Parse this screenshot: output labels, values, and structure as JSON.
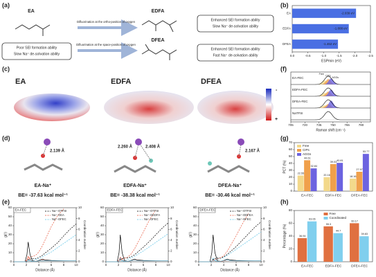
{
  "panel_labels": [
    "(a)",
    "(b)",
    "(c)",
    "(d)",
    "(e)",
    "(f)",
    "(g)",
    "(h)"
  ],
  "a": {
    "molecules": [
      "EA",
      "EDFA",
      "DFEA"
    ],
    "arrows": [
      "Difluorination at the ortho-position of oxygen",
      "Difluorination at the space-position of oxygen"
    ],
    "boxes": [
      [
        "Poor SEI formation ability",
        "Slow Na⁺ de-solvation ability"
      ],
      [
        "Enhanced SEI formation ability",
        "Slow Na⁺ de-solvation ability"
      ],
      [
        "Enhanced SEI formation ability",
        "Fast Na⁺ de-solvation ability"
      ]
    ]
  },
  "c": {
    "labels": [
      "EA",
      "EDFA",
      "DFEA"
    ],
    "scale": [
      "-",
      "+"
    ]
  },
  "d": {
    "distances": [
      "2.139 Å",
      "2.260 Å",
      "2.408 Å",
      "2.167 Å"
    ],
    "names": [
      "EA-Na⁺",
      "EDFA-Na⁺",
      "DFEA-Na⁺"
    ],
    "energies": [
      "BE= -37.63 kcal mol⁻¹",
      "BE= -38.38 kcal mol⁻¹",
      "BE= -30.46 kcal mol⁻¹"
    ]
  },
  "f": {
    "labels": [
      "EA-FEC",
      "EDFA-FEC",
      "DFEA-FEC",
      "NaTFSI"
    ],
    "peak_labels": [
      "Free",
      "CIPs",
      "AGGs"
    ],
    "xlabel": "Raman shift (cm⁻¹)",
    "xlim": [
      705,
      790
    ],
    "xticks": [
      705,
      720,
      735,
      750,
      765,
      780
    ]
  },
  "chart_data": [
    {
      "type": "hbar",
      "categories": [
        "EA",
        "EDFA",
        "DFEA"
      ],
      "values": [
        -2.039,
        -1.808,
        -1.462
      ],
      "value_labels": [
        "-2.039 eV",
        "-1.808 eV",
        "-1.462 eV"
      ],
      "color": "#4a6fe3",
      "xlabel": "ESPmin (eV)",
      "xlim": [
        0,
        -2.5
      ],
      "xticks": [
        {
          "value": 0,
          "label": "0.0"
        },
        -0.5,
        {
          "value": -1,
          "label": "-1.0"
        },
        -1.5,
        {
          "value": -2,
          "label": "-2.0"
        },
        -2.5
      ]
    },
    {
      "type": "bar",
      "ylabel": "PCT (%)",
      "categories": [
        "EA-FEC",
        "EDFA-FEC",
        "DFEA-FEC"
      ],
      "series": [
        {
          "name": "Free",
          "color": "#f3d98b",
          "values": [
            22.55,
            20.16,
            18.16
          ]
        },
        {
          "name": "CIPs",
          "color": "#f0a04b",
          "values": [
            44.61,
            39.03,
            27.97
          ]
        },
        {
          "name": "AGGs",
          "color": "#6c63e0",
          "values": [
            32.84,
            40.81,
            53.77
          ]
        }
      ],
      "ylim": [
        0,
        70
      ],
      "yticks": [
        0,
        10,
        20,
        30,
        40,
        50,
        60,
        70
      ],
      "legend": "upper left"
    },
    {
      "type": "bar",
      "ylabel": "Percentage (%)",
      "categories": [
        "EA-FEC",
        "EDFA-FEC",
        "DFEA-FEC"
      ],
      "series": [
        {
          "name": "Free",
          "color": "#e07040",
          "values": [
            36.94,
            55.3,
            60.17
          ]
        },
        {
          "name": "Coordinated",
          "color": "#80cfee",
          "values": [
            63.06,
            44.7,
            39.83
          ]
        }
      ],
      "ylim": [
        0,
        80
      ],
      "yticks": [
        0,
        20,
        40,
        60,
        80
      ],
      "legend": "upper center"
    },
    {
      "type": "line",
      "title": "EA-FEC",
      "xlabel": "Distance (Å)",
      "ylabel": "g(r)",
      "y2label": "Coordination number",
      "x": [
        0,
        1,
        1.8,
        2.1,
        2.3,
        2.6,
        3,
        3.5,
        4,
        4.6,
        5,
        6,
        7,
        8,
        9,
        10
      ],
      "xlim": [
        0,
        10
      ],
      "xticks": [
        0,
        2,
        4,
        6,
        8,
        10
      ],
      "ylim": [
        0,
        60
      ],
      "yticks": [
        0,
        10,
        20,
        30,
        40,
        50,
        60
      ],
      "y2lim": [
        0,
        10
      ],
      "y2ticks": [
        0,
        2,
        4,
        6,
        8,
        10
      ],
      "series": [
        {
          "color": "#000000",
          "values": [
            0,
            0,
            0,
            8,
            22,
            8,
            1,
            0.5,
            1.5,
            3,
            2,
            1.5,
            1.2,
            1.1,
            1,
            1
          ]
        },
        {
          "color": "#e8553a",
          "values": [
            0,
            0,
            0,
            2,
            6,
            2,
            0.5,
            0.5,
            1,
            2,
            1.5,
            1,
            1,
            1,
            1,
            1
          ]
        },
        {
          "color": "#56c1e6",
          "values": [
            0,
            0,
            0,
            1,
            3,
            1,
            0.3,
            0.5,
            1,
            1.5,
            1.2,
            1,
            1,
            1,
            1,
            1
          ]
        },
        {
          "name": "Na⁺-OTFSI",
          "color": "#000000",
          "dash": true,
          "axis": "y2",
          "values": [
            0,
            0,
            0,
            0.1,
            0.3,
            0.5,
            0.6,
            0.6,
            0.8,
            1.2,
            1.6,
            2.5,
            3.5,
            4.8,
            6,
            7
          ]
        },
        {
          "name": "Na⁺-OEA",
          "color": "#e8553a",
          "dash": true,
          "axis": "y2",
          "values": [
            0,
            0,
            0,
            0.2,
            0.5,
            0.8,
            1,
            1.2,
            1.8,
            3,
            4,
            6.5,
            8.5,
            9.8,
            null,
            null
          ]
        },
        {
          "name": "Na⁺-OFEC",
          "color": "#56c1e6",
          "dash": true,
          "axis": "y2",
          "values": [
            0,
            0,
            0,
            0,
            0.1,
            0.2,
            0.3,
            0.4,
            0.6,
            0.9,
            1.2,
            1.8,
            2.6,
            3.4,
            4.2,
            5
          ]
        }
      ]
    },
    {
      "type": "line",
      "title": "EDFA-FEC",
      "xlabel": "Distance (Å)",
      "ylabel": "g(r)",
      "y2label": "Coordination number",
      "x": [
        0,
        1,
        1.8,
        2.1,
        2.3,
        2.6,
        3,
        3.5,
        4,
        4.6,
        5,
        6,
        7,
        8,
        9,
        10
      ],
      "xlim": [
        0,
        10
      ],
      "xticks": [
        0,
        2,
        4,
        6,
        8,
        10
      ],
      "ylim": [
        0,
        60
      ],
      "yticks": [
        0,
        10,
        20,
        30,
        40,
        50,
        60
      ],
      "y2lim": [
        0,
        10
      ],
      "y2ticks": [
        0,
        2,
        4,
        6,
        8,
        10
      ],
      "series": [
        {
          "color": "#000000",
          "values": [
            0,
            0,
            0,
            10,
            30,
            10,
            1,
            0.5,
            1.5,
            3,
            2,
            1.5,
            1.2,
            1.1,
            1,
            1
          ]
        },
        {
          "color": "#e8553a",
          "values": [
            0,
            0,
            0,
            2,
            5,
            2,
            0.5,
            0.5,
            1,
            2,
            1.5,
            1,
            1,
            1,
            1,
            1
          ]
        },
        {
          "color": "#56c1e6",
          "values": [
            0,
            0,
            0,
            1,
            4,
            1,
            0.3,
            0.5,
            1.2,
            1.8,
            1.3,
            1,
            1,
            1,
            1,
            1
          ]
        },
        {
          "name": "Na⁺-OTFSI",
          "color": "#000000",
          "dash": true,
          "axis": "y2",
          "values": [
            0,
            0,
            0,
            0.1,
            0.4,
            0.6,
            0.7,
            0.7,
            0.9,
            1.3,
            1.7,
            2.7,
            3.8,
            5,
            6.2,
            7.2
          ]
        },
        {
          "name": "Na⁺-OEDFA",
          "color": "#e8553a",
          "dash": true,
          "axis": "y2",
          "values": [
            0,
            0,
            0,
            0.1,
            0.3,
            0.5,
            0.7,
            0.9,
            1.4,
            2.4,
            3.3,
            5.5,
            7.8,
            9.6,
            null,
            null
          ]
        },
        {
          "name": "Na⁺-OFEC",
          "color": "#56c1e6",
          "dash": true,
          "axis": "y2",
          "values": [
            0,
            0,
            0,
            0,
            0.1,
            0.2,
            0.3,
            0.4,
            0.7,
            1,
            1.3,
            2,
            2.8,
            3.6,
            4.4,
            5.2
          ]
        }
      ]
    },
    {
      "type": "line",
      "title": "DFEA-FEC",
      "xlabel": "Distance (Å)",
      "ylabel": "g(r)",
      "y2label": "Coordination number",
      "x": [
        0,
        1,
        1.8,
        2.1,
        2.3,
        2.6,
        3,
        3.5,
        4,
        4.6,
        5,
        6,
        7,
        8,
        9,
        10
      ],
      "xlim": [
        0,
        10
      ],
      "xticks": [
        0,
        2,
        4,
        6,
        8,
        10
      ],
      "ylim": [
        0,
        60
      ],
      "yticks": [
        0,
        10,
        20,
        30,
        40,
        50,
        60
      ],
      "y2lim": [
        0,
        10
      ],
      "y2ticks": [
        0,
        2,
        4,
        6,
        8,
        10
      ],
      "series": [
        {
          "color": "#000000",
          "values": [
            0,
            0,
            0,
            10,
            30,
            10,
            1,
            0.5,
            1.5,
            3,
            2,
            1.5,
            1.2,
            1.1,
            1,
            1
          ]
        },
        {
          "color": "#e8553a",
          "values": [
            0,
            0,
            0,
            1,
            3,
            1,
            0.4,
            0.5,
            1,
            1.8,
            1.4,
            1,
            1,
            1,
            1,
            1
          ]
        },
        {
          "color": "#56c1e6",
          "values": [
            0,
            0,
            0,
            1,
            4,
            1.2,
            0.3,
            0.6,
            1.4,
            2,
            1.4,
            1,
            1,
            1,
            1,
            1
          ]
        },
        {
          "name": "Na⁺-OTFSI",
          "color": "#000000",
          "dash": true,
          "axis": "y2",
          "values": [
            0,
            0,
            0,
            0.1,
            0.4,
            0.6,
            0.7,
            0.7,
            0.9,
            1.4,
            1.8,
            2.8,
            4,
            5.2,
            6.4,
            7.4
          ]
        },
        {
          "name": "Na⁺-ODFEA",
          "color": "#e8553a",
          "dash": true,
          "axis": "y2",
          "values": [
            0,
            0,
            0,
            0.1,
            0.2,
            0.4,
            0.5,
            0.7,
            1.1,
            2,
            2.8,
            4.8,
            7,
            9,
            null,
            null
          ]
        },
        {
          "name": "Na⁺-OFEC",
          "color": "#56c1e6",
          "dash": true,
          "axis": "y2",
          "values": [
            0,
            0,
            0,
            0,
            0.1,
            0.3,
            0.4,
            0.5,
            0.8,
            1.2,
            1.5,
            2.3,
            3.1,
            3.9,
            4.7,
            5.5
          ]
        }
      ]
    }
  ]
}
